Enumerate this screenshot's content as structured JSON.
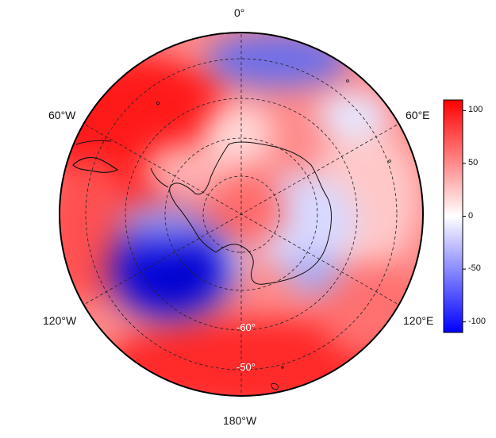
{
  "map": {
    "projection": "south polar stereographic",
    "longitude_labels": {
      "top": "0°",
      "upper_left": "60°W",
      "upper_right": "60°E",
      "lower_left": "120°W",
      "lower_right": "120°E",
      "bottom": "180°W"
    },
    "latitude_labels": {
      "inner": "-60°",
      "outer": "-50°"
    }
  },
  "colorbar": {
    "ticks": [
      "100",
      "50",
      "0",
      "-50",
      "-100"
    ],
    "tick_values": [
      100,
      50,
      0,
      -50,
      -100
    ],
    "range": [
      -110,
      110
    ],
    "colors": {
      "high": "#ff0000",
      "mid": "#ffffff",
      "low": "#0000ff"
    }
  },
  "chart_data": {
    "type": "heatmap",
    "value_range": [
      -110,
      110
    ],
    "colormap": [
      "#0000ff",
      "#ffffff",
      "#ff0000"
    ],
    "features": [
      {
        "region": "near 90°W, 60°S (off West Antarctica)",
        "value": -100
      },
      {
        "region": "near 20°E, 45°S",
        "value": -45
      },
      {
        "region": "near 90°E, 65°S",
        "value": -25
      },
      {
        "region": "near 70°W, 50°S (Drake Passage)",
        "value": 110
      },
      {
        "region": "near 180°, 45°S",
        "value": 90
      },
      {
        "region": "South Pole",
        "value": 40
      }
    ]
  }
}
